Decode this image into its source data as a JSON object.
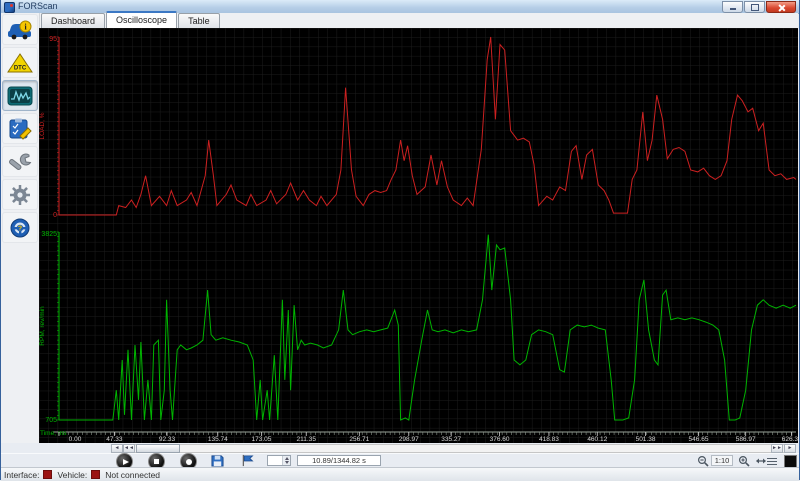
{
  "window": {
    "title": "FORScan"
  },
  "tabs": {
    "items": [
      {
        "label": "Dashboard"
      },
      {
        "label": "Oscilloscope"
      },
      {
        "label": "Table"
      }
    ],
    "active": "Oscilloscope"
  },
  "sidebar": {
    "items": [
      {
        "icon": "vehicle-info-icon"
      },
      {
        "icon": "dtc-icon"
      },
      {
        "icon": "oscilloscope-icon"
      },
      {
        "icon": "tests-icon"
      },
      {
        "icon": "service-icon"
      },
      {
        "icon": "settings-icon"
      },
      {
        "icon": "about-icon"
      }
    ]
  },
  "icons": {
    "play": "triangle-right",
    "stop": "square",
    "record": "circle",
    "scroll_left": "◄",
    "scroll_page_left": "◄◄",
    "scroll_right": "►",
    "scroll_page_right": "►►"
  },
  "toolbar": {
    "time_display": "10.89/1344.82 s",
    "zoom_ratio": "1:10",
    "spin_value": ""
  },
  "statusbar": {
    "interface_label": "Interface:",
    "vehicle_label": "Vehicle:",
    "connection_status": "Not connected",
    "indicator_color": "#9b1313"
  },
  "chart_data": {
    "type": "line",
    "title": "",
    "xlabel": "Time, ms",
    "background": "#000000",
    "grid": true,
    "xlim": [
      0,
      630
    ],
    "x_ticks": [
      "0.00",
      "47.33",
      "92.33",
      "135.74",
      "173.05",
      "211.35",
      "256.71",
      "298.97",
      "335.27",
      "376.60",
      "418.83",
      "460.12",
      "501.38",
      "546.65",
      "586.97",
      "626.30"
    ],
    "series": [
      {
        "name": "LOAD, %",
        "color": "#cc2020",
        "ymin": 0,
        "ymax": 95,
        "ymin_label": "0",
        "ymax_label": "95",
        "points": [
          [
            0,
            0
          ],
          [
            49,
            0
          ],
          [
            51,
            5
          ],
          [
            57,
            4
          ],
          [
            62,
            8
          ],
          [
            66,
            4
          ],
          [
            70,
            11
          ],
          [
            74,
            21
          ],
          [
            79,
            5
          ],
          [
            86,
            10
          ],
          [
            92,
            5
          ],
          [
            96,
            13
          ],
          [
            101,
            5
          ],
          [
            109,
            8
          ],
          [
            113,
            12
          ],
          [
            118,
            5
          ],
          [
            125,
            21
          ],
          [
            128,
            40
          ],
          [
            132,
            21
          ],
          [
            135,
            5
          ],
          [
            143,
            11
          ],
          [
            147,
            16
          ],
          [
            152,
            8
          ],
          [
            160,
            5
          ],
          [
            164,
            11
          ],
          [
            169,
            5
          ],
          [
            177,
            8
          ],
          [
            181,
            13
          ],
          [
            186,
            6
          ],
          [
            194,
            11
          ],
          [
            198,
            17
          ],
          [
            204,
            8
          ],
          [
            209,
            13
          ],
          [
            214,
            8
          ],
          [
            220,
            5
          ],
          [
            224,
            10
          ],
          [
            229,
            5
          ],
          [
            237,
            11
          ],
          [
            241,
            24
          ],
          [
            245,
            68
          ],
          [
            250,
            24
          ],
          [
            254,
            10
          ],
          [
            260,
            5
          ],
          [
            265,
            11
          ],
          [
            270,
            13
          ],
          [
            275,
            12
          ],
          [
            280,
            13
          ],
          [
            284,
            19
          ],
          [
            288,
            24
          ],
          [
            292,
            40
          ],
          [
            295,
            29
          ],
          [
            298,
            37
          ],
          [
            302,
            21
          ],
          [
            306,
            11
          ],
          [
            313,
            15
          ],
          [
            318,
            32
          ],
          [
            323,
            16
          ],
          [
            327,
            29
          ],
          [
            332,
            15
          ],
          [
            337,
            8
          ],
          [
            344,
            5
          ],
          [
            349,
            9
          ],
          [
            354,
            5
          ],
          [
            361,
            35
          ],
          [
            366,
            83
          ],
          [
            369,
            95
          ],
          [
            373,
            51
          ],
          [
            377,
            91
          ],
          [
            381,
            88
          ],
          [
            386,
            45
          ],
          [
            392,
            40
          ],
          [
            397,
            41
          ],
          [
            402,
            39
          ],
          [
            406,
            27
          ],
          [
            410,
            5
          ],
          [
            417,
            10
          ],
          [
            422,
            8
          ],
          [
            428,
            15
          ],
          [
            433,
            13
          ],
          [
            438,
            34
          ],
          [
            442,
            37
          ],
          [
            447,
            19
          ],
          [
            451,
            32
          ],
          [
            456,
            35
          ],
          [
            461,
            16
          ],
          [
            466,
            13
          ],
          [
            470,
            8
          ],
          [
            474,
            1
          ],
          [
            481,
            1
          ],
          [
            486,
            1
          ],
          [
            490,
            19
          ],
          [
            494,
            24
          ],
          [
            499,
            55
          ],
          [
            503,
            29
          ],
          [
            507,
            40
          ],
          [
            511,
            64
          ],
          [
            516,
            51
          ],
          [
            520,
            30
          ],
          [
            525,
            35
          ],
          [
            530,
            36
          ],
          [
            535,
            34
          ],
          [
            540,
            24
          ],
          [
            546,
            23
          ],
          [
            551,
            25
          ],
          [
            556,
            21
          ],
          [
            561,
            19
          ],
          [
            566,
            21
          ],
          [
            571,
            29
          ],
          [
            575,
            51
          ],
          [
            580,
            64
          ],
          [
            584,
            61
          ],
          [
            589,
            55
          ],
          [
            593,
            57
          ],
          [
            598,
            45
          ],
          [
            602,
            49
          ],
          [
            607,
            24
          ],
          [
            612,
            21
          ],
          [
            617,
            22
          ],
          [
            622,
            19
          ],
          [
            628,
            20
          ],
          [
            630,
            19
          ]
        ]
      },
      {
        "name": "RPM, rev/min",
        "color": "#00b400",
        "ymin": 705,
        "ymax": 3825,
        "ymin_label": "705",
        "ymax_label": "3825",
        "points": [
          [
            0,
            705
          ],
          [
            46,
            705
          ],
          [
            49,
            1200
          ],
          [
            51,
            705
          ],
          [
            54,
            1700
          ],
          [
            56,
            790
          ],
          [
            59,
            1870
          ],
          [
            62,
            705
          ],
          [
            65,
            1950
          ],
          [
            68,
            1040
          ],
          [
            70,
            2000
          ],
          [
            73,
            705
          ],
          [
            76,
            1370
          ],
          [
            79,
            705
          ],
          [
            81,
            1950
          ],
          [
            85,
            2030
          ],
          [
            87,
            705
          ],
          [
            90,
            1200
          ],
          [
            92,
            2700
          ],
          [
            95,
            1200
          ],
          [
            97,
            705
          ],
          [
            101,
            1870
          ],
          [
            104,
            1950
          ],
          [
            109,
            1870
          ],
          [
            113,
            1900
          ],
          [
            118,
            1950
          ],
          [
            123,
            2030
          ],
          [
            127,
            2860
          ],
          [
            130,
            2120
          ],
          [
            134,
            2030
          ],
          [
            140,
            2070
          ],
          [
            147,
            2030
          ],
          [
            154,
            2000
          ],
          [
            161,
            1950
          ],
          [
            166,
            1700
          ],
          [
            169,
            705
          ],
          [
            172,
            1370
          ],
          [
            174,
            705
          ],
          [
            178,
            1200
          ],
          [
            180,
            705
          ],
          [
            184,
            1780
          ],
          [
            187,
            705
          ],
          [
            191,
            2700
          ],
          [
            193,
            1370
          ],
          [
            196,
            2530
          ],
          [
            198,
            1200
          ],
          [
            201,
            2610
          ],
          [
            204,
            1870
          ],
          [
            207,
            2030
          ],
          [
            210,
            1950
          ],
          [
            215,
            1980
          ],
          [
            221,
            1950
          ],
          [
            226,
            1900
          ],
          [
            233,
            1950
          ],
          [
            239,
            2200
          ],
          [
            243,
            2860
          ],
          [
            247,
            2200
          ],
          [
            251,
            2120
          ],
          [
            257,
            2170
          ],
          [
            263,
            2200
          ],
          [
            269,
            2170
          ],
          [
            275,
            2200
          ],
          [
            281,
            2230
          ],
          [
            287,
            2530
          ],
          [
            290,
            2280
          ],
          [
            292,
            705
          ],
          [
            296,
            740
          ],
          [
            299,
            705
          ],
          [
            304,
            1370
          ],
          [
            310,
            2030
          ],
          [
            315,
            2530
          ],
          [
            319,
            2200
          ],
          [
            324,
            2170
          ],
          [
            330,
            2200
          ],
          [
            337,
            2150
          ],
          [
            344,
            2200
          ],
          [
            350,
            2170
          ],
          [
            357,
            2200
          ],
          [
            362,
            2700
          ],
          [
            367,
            3780
          ],
          [
            370,
            2860
          ],
          [
            374,
            3610
          ],
          [
            377,
            3530
          ],
          [
            381,
            3560
          ],
          [
            386,
            2700
          ],
          [
            389,
            1700
          ],
          [
            394,
            1620
          ],
          [
            399,
            1700
          ],
          [
            404,
            2120
          ],
          [
            410,
            2200
          ],
          [
            416,
            2170
          ],
          [
            422,
            2120
          ],
          [
            428,
            1540
          ],
          [
            432,
            1500
          ],
          [
            437,
            2200
          ],
          [
            443,
            2280
          ],
          [
            449,
            2250
          ],
          [
            455,
            2280
          ],
          [
            461,
            2230
          ],
          [
            467,
            2200
          ],
          [
            472,
            1370
          ],
          [
            475,
            705
          ],
          [
            482,
            705
          ],
          [
            487,
            740
          ],
          [
            492,
            1370
          ],
          [
            496,
            2700
          ],
          [
            500,
            3030
          ],
          [
            504,
            2200
          ],
          [
            509,
            1700
          ],
          [
            512,
            1620
          ],
          [
            516,
            2780
          ],
          [
            519,
            2860
          ],
          [
            523,
            2370
          ],
          [
            529,
            2400
          ],
          [
            535,
            2370
          ],
          [
            541,
            2400
          ],
          [
            547,
            2370
          ],
          [
            553,
            2330
          ],
          [
            559,
            2280
          ],
          [
            564,
            2200
          ],
          [
            569,
            1700
          ],
          [
            573,
            705
          ],
          [
            578,
            705
          ],
          [
            582,
            740
          ],
          [
            587,
            1200
          ],
          [
            592,
            2200
          ],
          [
            597,
            2610
          ],
          [
            602,
            2700
          ],
          [
            607,
            2610
          ],
          [
            613,
            2560
          ],
          [
            619,
            2610
          ],
          [
            625,
            2560
          ],
          [
            630,
            2610
          ]
        ]
      }
    ]
  }
}
